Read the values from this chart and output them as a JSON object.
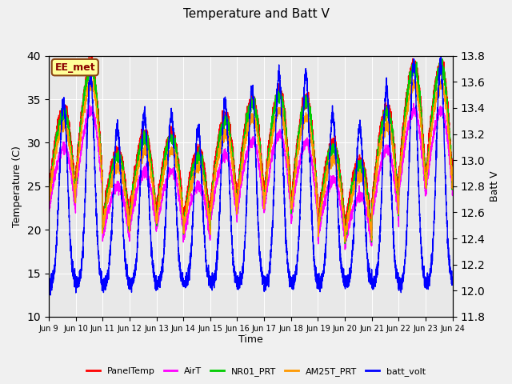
{
  "title": "Temperature and Batt V",
  "xlabel": "Time",
  "ylabel_left": "Temperature (C)",
  "ylabel_right": "Batt V",
  "annotation": "EE_met",
  "ylim_left": [
    10,
    40
  ],
  "ylim_right": [
    11.8,
    13.8
  ],
  "xtick_labels": [
    "Jun 9",
    "Jun 10",
    "Jun 11",
    "Jun 12",
    "Jun 13",
    "Jun 14",
    "Jun 15",
    "Jun 16",
    "Jun 17",
    "Jun 18",
    "Jun 19",
    "Jun 20",
    "Jun 21",
    "Jun 22",
    "Jun 23",
    "Jun 24"
  ],
  "n_days": 15,
  "pts_per_day": 288,
  "plot_bgcolor": "#e8e8e8",
  "fig_bgcolor": "#f0f0f0",
  "series_colors": {
    "PanelTemp": "#ff0000",
    "AirT": "#ff00ff",
    "NR01_PRT": "#00cc00",
    "AM25T_PRT": "#ff9900",
    "batt_volt": "#0000ff"
  },
  "legend_labels": [
    "PanelTemp",
    "AirT",
    "NR01_PRT",
    "AM25T_PRT",
    "batt_volt"
  ],
  "legend_colors": [
    "#ff0000",
    "#ff00ff",
    "#00cc00",
    "#ff9900",
    "#0000ff"
  ],
  "yticks_left": [
    10,
    15,
    20,
    25,
    30,
    35,
    40
  ],
  "yticks_right": [
    11.8,
    12.0,
    12.2,
    12.4,
    12.6,
    12.8,
    13.0,
    13.2,
    13.4,
    13.6,
    13.8
  ],
  "lw": 1.0,
  "annotation_facecolor": "#ffff99",
  "annotation_edgecolor": "#8b4513",
  "annotation_textcolor": "#8b0000",
  "title_fontsize": 11,
  "label_fontsize": 9,
  "tick_fontsize": 7,
  "legend_fontsize": 8,
  "day_amps": [
    10,
    13,
    8,
    9,
    9,
    8,
    10,
    11,
    12,
    12,
    9,
    8,
    11,
    13,
    13
  ],
  "day_bases": [
    23,
    25,
    20,
    21,
    21,
    20,
    22,
    23,
    23,
    22,
    20,
    19,
    22,
    25,
    25
  ],
  "batt_day_amps": [
    0.7,
    0.8,
    0.6,
    0.65,
    0.65,
    0.6,
    0.7,
    0.75,
    0.8,
    0.8,
    0.65,
    0.6,
    0.75,
    0.85,
    0.85
  ]
}
